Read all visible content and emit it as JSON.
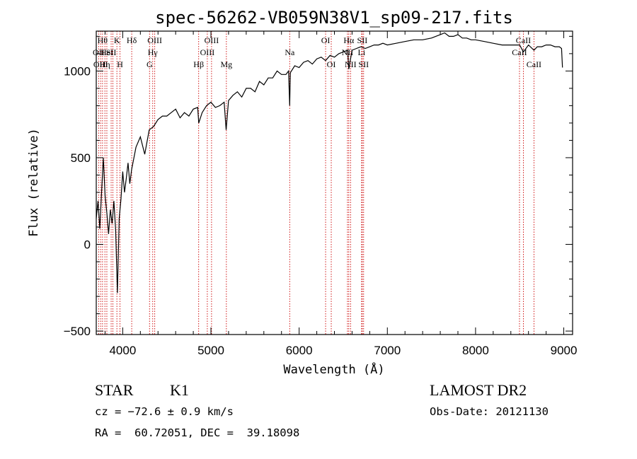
{
  "chart_data": {
    "type": "line",
    "title": "spec-56262-VB059N38V1_sp09-217.fits",
    "xlabel": "Wavelength (Å)",
    "ylabel": "Flux (relative)",
    "xlim": [
      3700,
      9100
    ],
    "ylim": [
      -520,
      1230
    ],
    "xticks": [
      4000,
      5000,
      6000,
      7000,
      8000,
      9000
    ],
    "xtick_labels": [
      "4000",
      "5000",
      "6000",
      "7000",
      "8000",
      "9000"
    ],
    "yticks": [
      -500,
      0,
      500,
      1000
    ],
    "ytick_labels": [
      "−500",
      "0",
      "500",
      "1000"
    ],
    "grid": false,
    "series": [
      {
        "x": [
          3700,
          3720,
          3740,
          3760,
          3780,
          3800,
          3820,
          3840,
          3860,
          3880,
          3900,
          3920,
          3940,
          3960,
          3980,
          4000,
          4020,
          4040,
          4060,
          4080,
          4100,
          4150,
          4200,
          4250,
          4300,
          4350,
          4400,
          4450,
          4500,
          4550,
          4600,
          4650,
          4700,
          4750,
          4800,
          4850,
          4862,
          4900,
          4950,
          5000,
          5050,
          5100,
          5150,
          5172,
          5200,
          5250,
          5300,
          5350,
          5400,
          5450,
          5500,
          5550,
          5600,
          5650,
          5700,
          5750,
          5800,
          5850,
          5880,
          5893,
          5900,
          5950,
          6000,
          6050,
          6100,
          6150,
          6200,
          6250,
          6300,
          6350,
          6400,
          6450,
          6500,
          6550,
          6563,
          6600,
          6650,
          6700,
          6750,
          6800,
          6850,
          6900,
          6950,
          7000,
          7100,
          7200,
          7300,
          7400,
          7500,
          7600,
          7650,
          7700,
          7750,
          7800,
          7850,
          7900,
          7950,
          8000,
          8100,
          8200,
          8300,
          8400,
          8500,
          8542,
          8600,
          8662,
          8700,
          8750,
          8800,
          8850,
          8900,
          8950,
          8975,
          8985
        ],
        "y": [
          150,
          250,
          90,
          300,
          500,
          280,
          180,
          60,
          200,
          120,
          250,
          80,
          -280,
          150,
          260,
          420,
          300,
          380,
          470,
          350,
          430,
          560,
          620,
          520,
          660,
          680,
          720,
          740,
          740,
          760,
          780,
          730,
          760,
          740,
          780,
          790,
          700,
          760,
          800,
          820,
          790,
          800,
          820,
          660,
          830,
          860,
          880,
          850,
          900,
          900,
          880,
          940,
          920,
          960,
          960,
          1000,
          980,
          980,
          1000,
          800,
          990,
          1030,
          1020,
          1050,
          1060,
          1040,
          1070,
          1080,
          1060,
          1090,
          1080,
          1100,
          1110,
          1120,
          1010,
          1120,
          1130,
          1140,
          1130,
          1140,
          1150,
          1150,
          1160,
          1150,
          1160,
          1170,
          1180,
          1180,
          1190,
          1210,
          1220,
          1200,
          1200,
          1210,
          1190,
          1190,
          1180,
          1180,
          1170,
          1160,
          1150,
          1150,
          1150,
          1110,
          1150,
          1120,
          1140,
          1140,
          1150,
          1150,
          1140,
          1140,
          1130,
          1020
        ]
      }
    ],
    "lines": [
      {
        "x": 3727,
        "label": "OII",
        "row": 2
      },
      {
        "x": 3750,
        "label": "OIII",
        "row": 3
      },
      {
        "x": 3771,
        "label": "Hθ",
        "row": 1
      },
      {
        "x": 3798,
        "label": "Hη",
        "row": 3
      },
      {
        "x": 3820,
        "label": "HeI",
        "row": 2
      },
      {
        "x": 3869,
        "label": "SII",
        "row": 2
      },
      {
        "x": 3889,
        "label": "",
        "row": 0
      },
      {
        "x": 3934,
        "label": "K",
        "row": 1
      },
      {
        "x": 3969,
        "label": "H",
        "row": 3
      },
      {
        "x": 4102,
        "label": "Hδ",
        "row": 1
      },
      {
        "x": 4304,
        "label": "G",
        "row": 3
      },
      {
        "x": 4340,
        "label": "Hγ",
        "row": 2
      },
      {
        "x": 4363,
        "label": "OIII",
        "row": 1
      },
      {
        "x": 4861,
        "label": "Hβ",
        "row": 3
      },
      {
        "x": 4959,
        "label": "OIII",
        "row": 2
      },
      {
        "x": 5007,
        "label": "OIII",
        "row": 1
      },
      {
        "x": 5175,
        "label": "Mg",
        "row": 3
      },
      {
        "x": 5893,
        "label": "Na",
        "row": 2
      },
      {
        "x": 6300,
        "label": "OI",
        "row": 1
      },
      {
        "x": 6364,
        "label": "OI",
        "row": 3
      },
      {
        "x": 6548,
        "label": "NII",
        "row": 2
      },
      {
        "x": 6563,
        "label": "Hα",
        "row": 1
      },
      {
        "x": 6583,
        "label": "NII",
        "row": 3
      },
      {
        "x": 6708,
        "label": "Li",
        "row": 2
      },
      {
        "x": 6716,
        "label": "SII",
        "row": 1
      },
      {
        "x": 6731,
        "label": "SII",
        "row": 3
      },
      {
        "x": 8498,
        "label": "CaII",
        "row": 2
      },
      {
        "x": 8542,
        "label": "CaII",
        "row": 1
      },
      {
        "x": 8662,
        "label": "CaII",
        "row": 3
      }
    ]
  },
  "info": {
    "class_label": "STAR",
    "subclass": "K1",
    "survey": "LAMOST DR2",
    "cz": "cz = −72.6 ± 0.9 km/s",
    "obs_date": "Obs-Date: 20121130",
    "coords": "RA =  60.72051, DEC =  39.18098"
  }
}
